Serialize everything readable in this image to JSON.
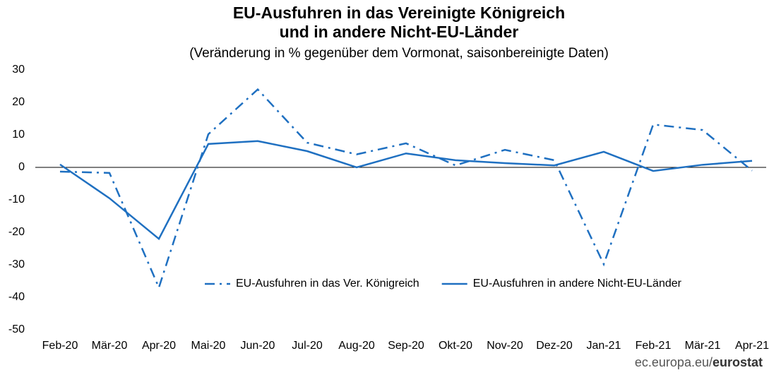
{
  "chart_data": {
    "type": "line",
    "title": [
      "EU-Ausfuhren in das Vereinigte Königreich",
      "und in andere Nicht-EU-Länder"
    ],
    "subtitle": "(Veränderung in % gegenüber dem Vormonat, saisonbereinigte Daten)",
    "categories": [
      "Feb-20",
      "Mär-20",
      "Apr-20",
      "Mai-20",
      "Jun-20",
      "Jul-20",
      "Aug-20",
      "Sep-20",
      "Okt-20",
      "Nov-20",
      "Dez-20",
      "Jan-21",
      "Feb-21",
      "Mär-21",
      "Apr-21"
    ],
    "series": [
      {
        "name": "EU-Ausfuhren in das Ver. Königreich",
        "color": "#1f70c1",
        "dash": "dashdot",
        "values": [
          -1.3,
          -1.7,
          -37,
          10.2,
          24,
          7.6,
          4,
          7.4,
          0.6,
          5.4,
          2.2,
          -29.8,
          13.2,
          11.5,
          -1
        ]
      },
      {
        "name": "EU-Ausfuhren in andere Nicht-EU-Länder",
        "color": "#1f70c1",
        "dash": "solid",
        "values": [
          0.9,
          -9.5,
          -22,
          7.2,
          8.1,
          5,
          0,
          4.3,
          2.2,
          1.3,
          0.6,
          4.8,
          -1.1,
          0.8,
          2
        ]
      }
    ],
    "ylim": [
      -50,
      30
    ],
    "yticks": [
      -50,
      -40,
      -30,
      -20,
      -10,
      0,
      10,
      20,
      30
    ],
    "grid": false,
    "legend": "lower right",
    "source": [
      "ec.europa.eu/",
      "eurostat"
    ]
  }
}
